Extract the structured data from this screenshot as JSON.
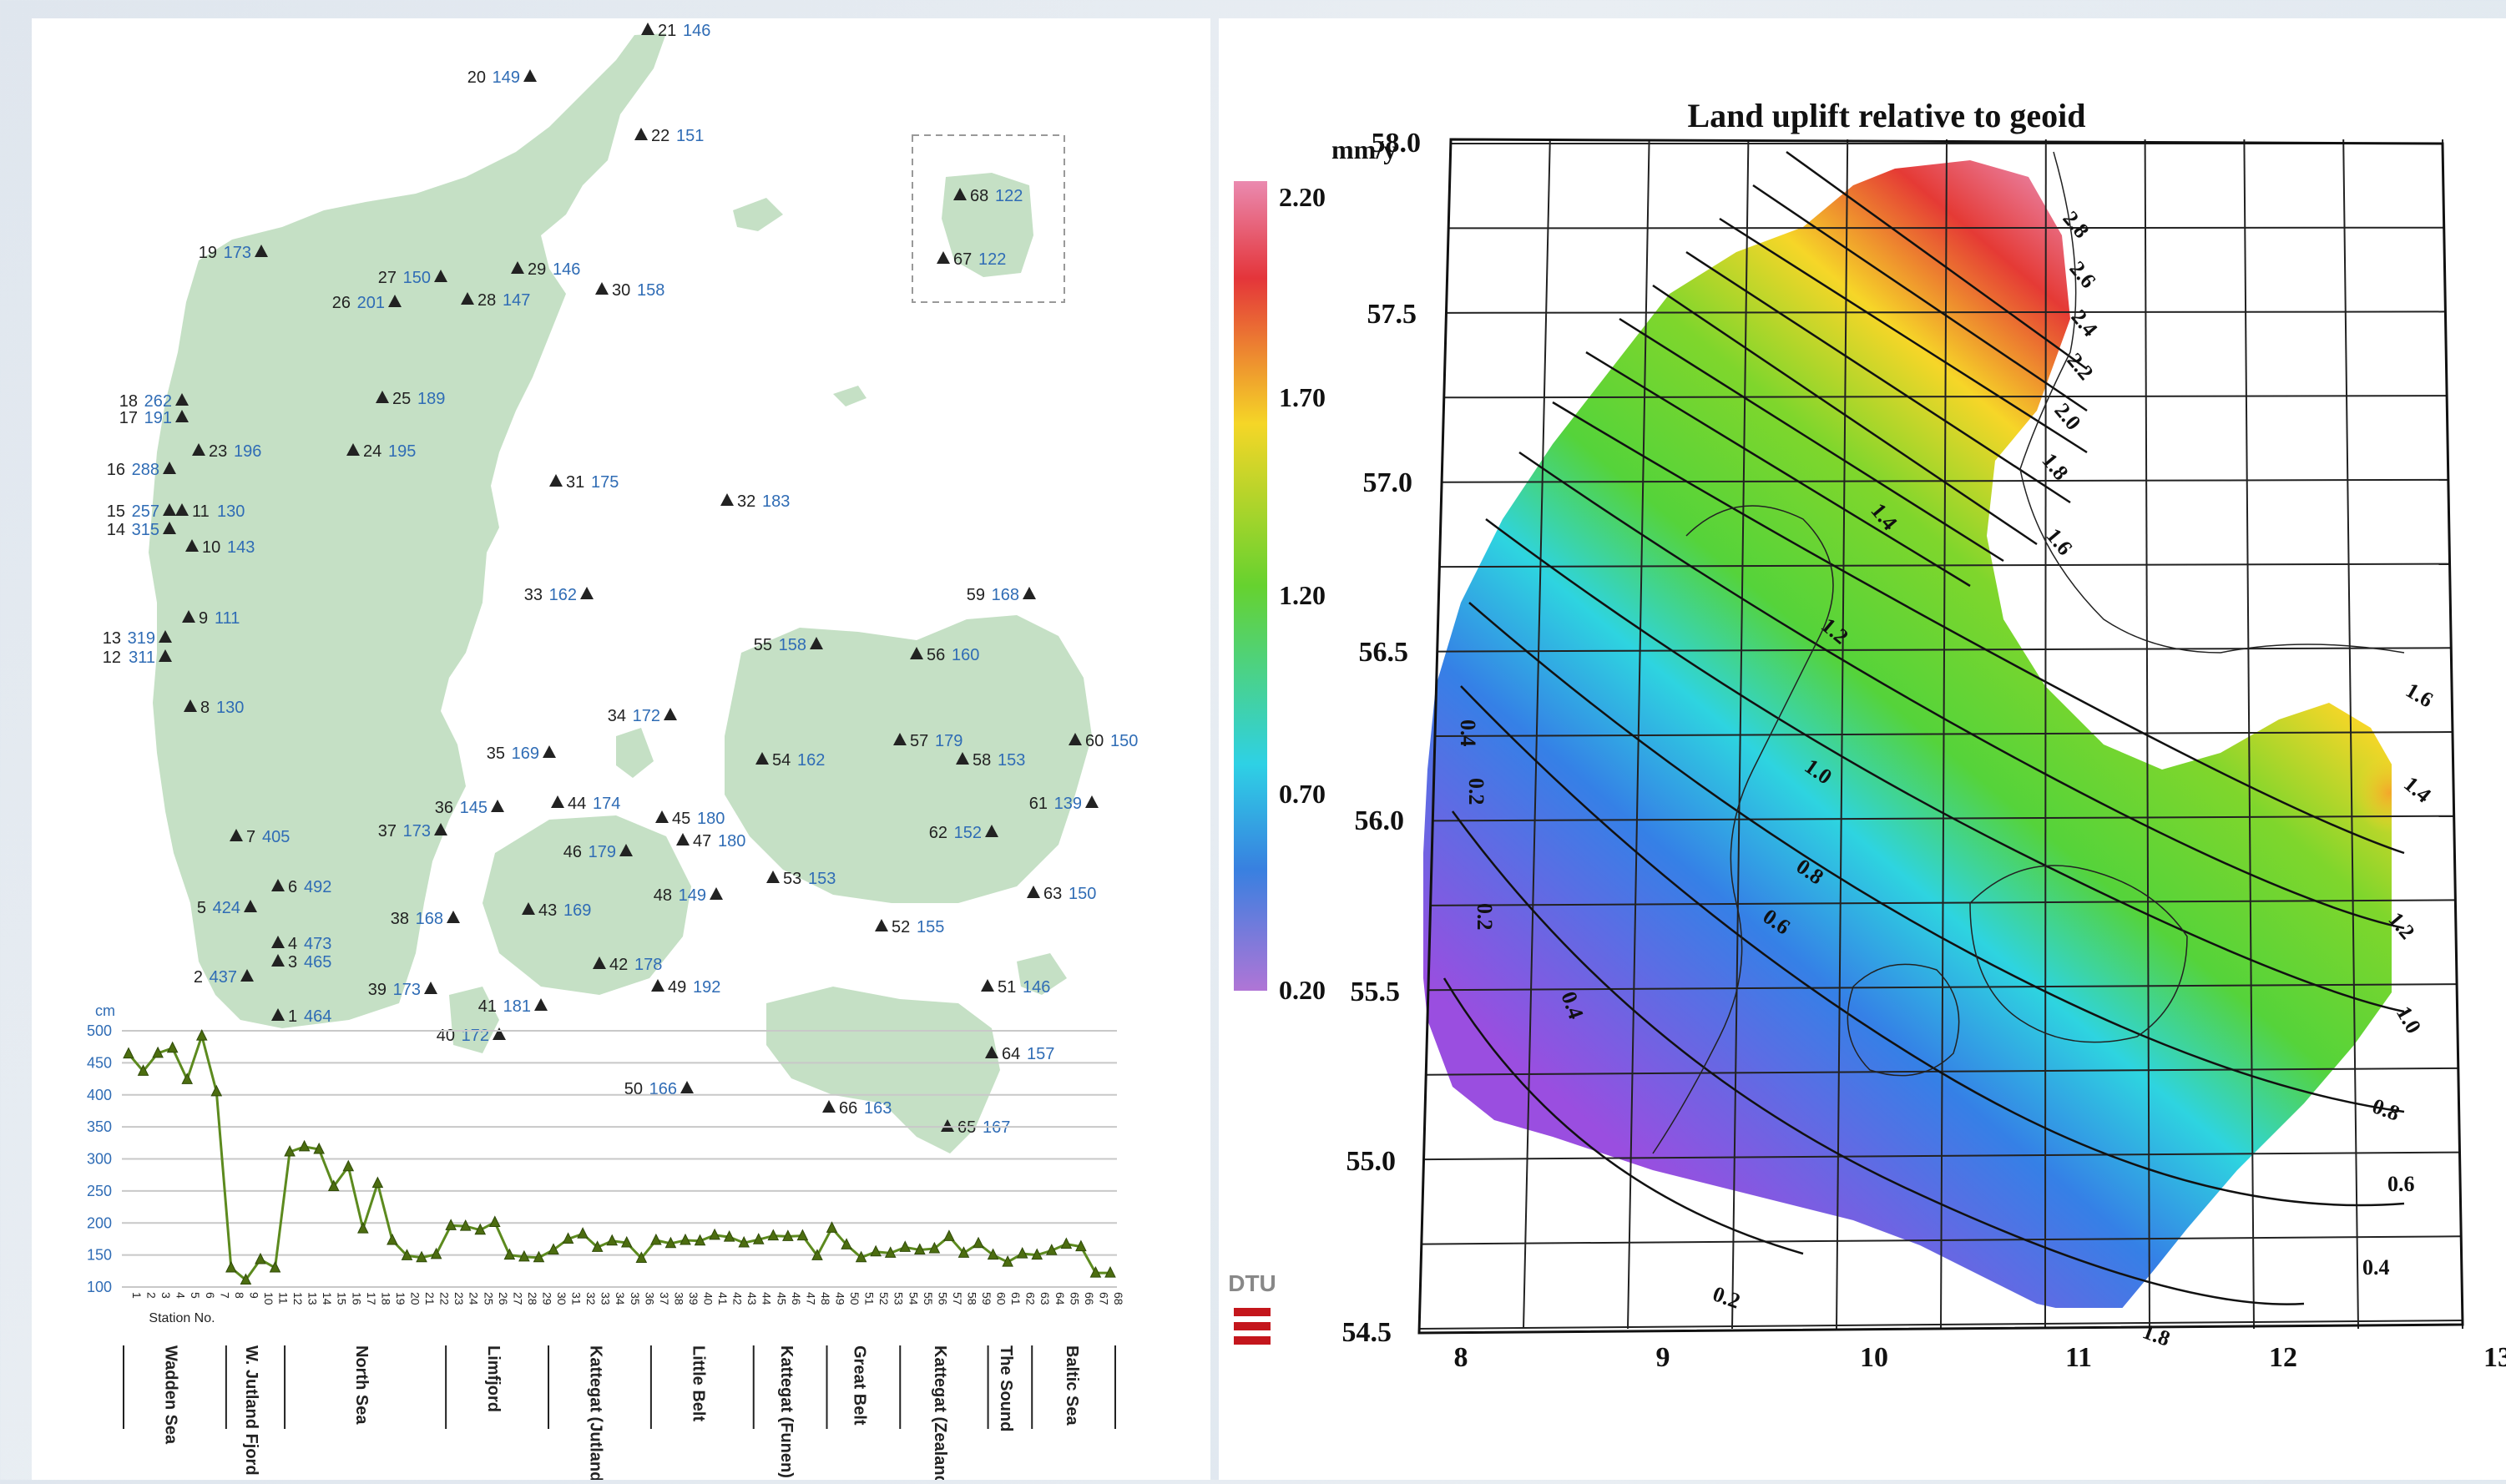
{
  "inset_stations": [
    {
      "no": "68",
      "value": "122"
    },
    {
      "no": "67",
      "value": "122"
    }
  ],
  "stations": [
    {
      "no": "1",
      "value": "464"
    },
    {
      "no": "2",
      "value": "437"
    },
    {
      "no": "3",
      "value": "465"
    },
    {
      "no": "4",
      "value": "473"
    },
    {
      "no": "5",
      "value": "424"
    },
    {
      "no": "6",
      "value": "492"
    },
    {
      "no": "7",
      "value": "405"
    },
    {
      "no": "8",
      "value": "130"
    },
    {
      "no": "9",
      "value": "111"
    },
    {
      "no": "10",
      "value": "143"
    },
    {
      "no": "11",
      "value": "130"
    },
    {
      "no": "12",
      "value": "311"
    },
    {
      "no": "13",
      "value": "319"
    },
    {
      "no": "14",
      "value": "315"
    },
    {
      "no": "15",
      "value": "257"
    },
    {
      "no": "16",
      "value": "288"
    },
    {
      "no": "17",
      "value": "191"
    },
    {
      "no": "18",
      "value": "262"
    },
    {
      "no": "19",
      "value": "173"
    },
    {
      "no": "20",
      "value": "149"
    },
    {
      "no": "21",
      "value": "146"
    },
    {
      "no": "22",
      "value": "151"
    },
    {
      "no": "23",
      "value": "196"
    },
    {
      "no": "24",
      "value": "195"
    },
    {
      "no": "25",
      "value": "189"
    },
    {
      "no": "26",
      "value": "201"
    },
    {
      "no": "27",
      "value": "150"
    },
    {
      "no": "28",
      "value": "147"
    },
    {
      "no": "29",
      "value": "146"
    },
    {
      "no": "30",
      "value": "158"
    },
    {
      "no": "31",
      "value": "175"
    },
    {
      "no": "32",
      "value": "183"
    },
    {
      "no": "33",
      "value": "162"
    },
    {
      "no": "34",
      "value": "172"
    },
    {
      "no": "35",
      "value": "169"
    },
    {
      "no": "36",
      "value": "145"
    },
    {
      "no": "37",
      "value": "173"
    },
    {
      "no": "38",
      "value": "168"
    },
    {
      "no": "39",
      "value": "173"
    },
    {
      "no": "40",
      "value": "172"
    },
    {
      "no": "41",
      "value": "181"
    },
    {
      "no": "42",
      "value": "178"
    },
    {
      "no": "43",
      "value": "169"
    },
    {
      "no": "44",
      "value": "174"
    },
    {
      "no": "45",
      "value": "180"
    },
    {
      "no": "46",
      "value": "179"
    },
    {
      "no": "47",
      "value": "180"
    },
    {
      "no": "48",
      "value": "149"
    },
    {
      "no": "49",
      "value": "192"
    },
    {
      "no": "50",
      "value": "166"
    },
    {
      "no": "51",
      "value": "146"
    },
    {
      "no": "52",
      "value": "155"
    },
    {
      "no": "53",
      "value": "153"
    },
    {
      "no": "54",
      "value": "162"
    },
    {
      "no": "55",
      "value": "158"
    },
    {
      "no": "56",
      "value": "160"
    },
    {
      "no": "57",
      "value": "179"
    },
    {
      "no": "58",
      "value": "153"
    },
    {
      "no": "59",
      "value": "168"
    },
    {
      "no": "60",
      "value": "150"
    },
    {
      "no": "61",
      "value": "139"
    },
    {
      "no": "62",
      "value": "152"
    },
    {
      "no": "63",
      "value": "150"
    },
    {
      "no": "64",
      "value": "157"
    },
    {
      "no": "65",
      "value": "167"
    },
    {
      "no": "66",
      "value": "163"
    }
  ],
  "chart_data": [
    {
      "type": "line",
      "ylabel": "cm",
      "xlabel": "Station No.",
      "ylim": [
        100,
        500
      ],
      "yticks": [
        100,
        150,
        200,
        250,
        300,
        350,
        400,
        450,
        500
      ],
      "grid": true,
      "x": [
        1,
        2,
        3,
        4,
        5,
        6,
        7,
        8,
        9,
        10,
        11,
        12,
        13,
        14,
        15,
        16,
        17,
        18,
        19,
        20,
        21,
        22,
        23,
        24,
        25,
        26,
        27,
        28,
        29,
        30,
        31,
        32,
        33,
        34,
        35,
        36,
        37,
        38,
        39,
        40,
        41,
        42,
        43,
        44,
        45,
        46,
        47,
        48,
        49,
        50,
        51,
        52,
        53,
        54,
        55,
        56,
        57,
        58,
        59,
        60,
        61,
        62,
        63,
        64,
        65,
        66,
        67,
        68
      ],
      "values": [
        464,
        437,
        465,
        473,
        424,
        492,
        405,
        130,
        111,
        143,
        130,
        311,
        319,
        315,
        257,
        288,
        191,
        262,
        173,
        149,
        146,
        151,
        196,
        195,
        189,
        201,
        150,
        147,
        146,
        158,
        175,
        183,
        162,
        172,
        169,
        145,
        173,
        168,
        173,
        172,
        181,
        178,
        169,
        174,
        180,
        179,
        180,
        149,
        192,
        166,
        146,
        155,
        153,
        162,
        158,
        160,
        179,
        153,
        168,
        150,
        139,
        152,
        150,
        157,
        167,
        163,
        122,
        122
      ],
      "regions": [
        "Wadden Sea",
        "W. Jutland Fjord",
        "North Sea",
        "Limfjord",
        "Kattegat (Jutland)",
        "Little Belt",
        "Kattegat (Funen)",
        "Great Belt",
        "Kattegat (Zealand)",
        "The Sound",
        "Baltic Sea"
      ]
    },
    {
      "type": "heatmap",
      "title": "Land uplift relative to geoid",
      "colorbar_unit": "mm/y",
      "colorbar_ticks": [
        "2.20",
        "1.70",
        "1.20",
        "0.70",
        "0.20"
      ],
      "x_ticks": [
        "8",
        "9",
        "10",
        "11",
        "12",
        "13"
      ],
      "y_ticks": [
        "58.0",
        "57.5",
        "57.0",
        "56.5",
        "56.0",
        "55.5",
        "55.0",
        "54.5"
      ],
      "contour_labels": [
        "2.8",
        "2.6",
        "2.4",
        "2.2",
        "2.0",
        "1.8",
        "1.6",
        "1.4",
        "1.2",
        "1.0",
        "0.8",
        "0.6",
        "0.4",
        "0.2",
        "1.8",
        "1.6",
        "1.4",
        "1.2",
        "1.0",
        "0.8",
        "0.6",
        "0.4",
        "0.2",
        "0.2",
        "0.4"
      ],
      "logo": "DTU"
    }
  ],
  "colors": {
    "land": "#c5e0c5",
    "station_value": "#2f6cb5",
    "station_no": "#222222",
    "line": "#5c8a1e",
    "grid": "#c8c8c8"
  }
}
